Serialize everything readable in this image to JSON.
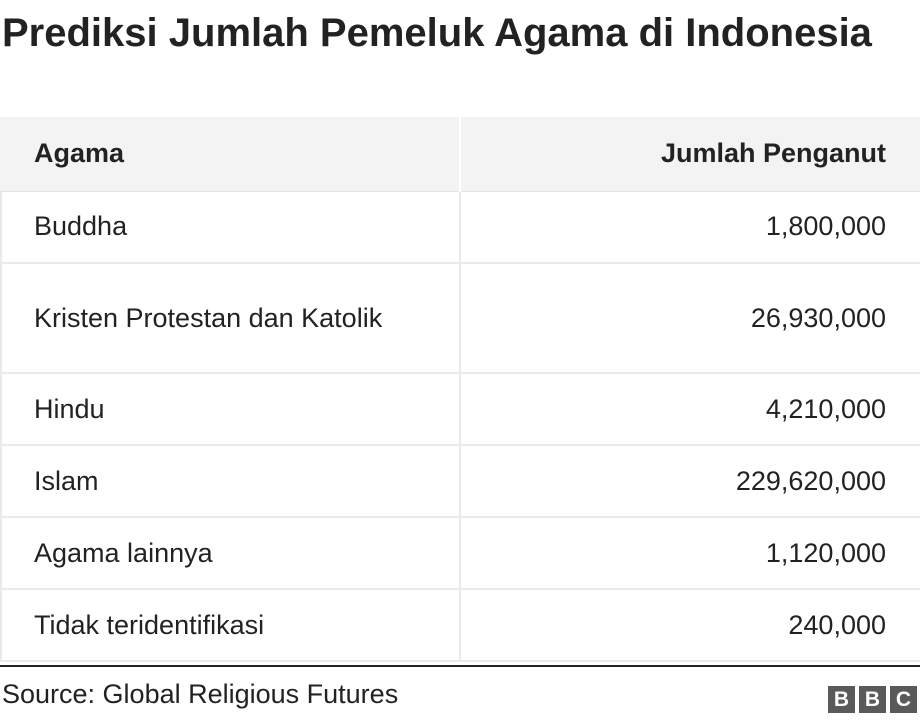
{
  "title": "Prediksi Jumlah Pemeluk Agama di Indonesia",
  "table": {
    "headers": [
      "Agama",
      "Jumlah Penganut"
    ],
    "rows": [
      {
        "agama": "Buddha",
        "jumlah": "1,800,000"
      },
      {
        "agama": "Kristen Protestan dan Katolik",
        "jumlah": "26,930,000"
      },
      {
        "agama": "Hindu",
        "jumlah": "4,210,000"
      },
      {
        "agama": "Islam",
        "jumlah": "229,620,000"
      },
      {
        "agama": "Agama lainnya",
        "jumlah": "1,120,000"
      },
      {
        "agama": "Tidak teridentifikasi",
        "jumlah": "240,000"
      }
    ]
  },
  "chart_data": {
    "type": "table",
    "title": "Prediksi Jumlah Pemeluk Agama di Indonesia",
    "columns": [
      "Agama",
      "Jumlah Penganut"
    ],
    "categories": [
      "Buddha",
      "Kristen Protestan dan Katolik",
      "Hindu",
      "Islam",
      "Agama lainnya",
      "Tidak teridentifikasi"
    ],
    "values": [
      1800000,
      26930000,
      4210000,
      229620000,
      1120000,
      240000
    ]
  },
  "footer": {
    "source": "Source: Global Religious Futures",
    "logo_letters": [
      "B",
      "B",
      "C"
    ]
  }
}
